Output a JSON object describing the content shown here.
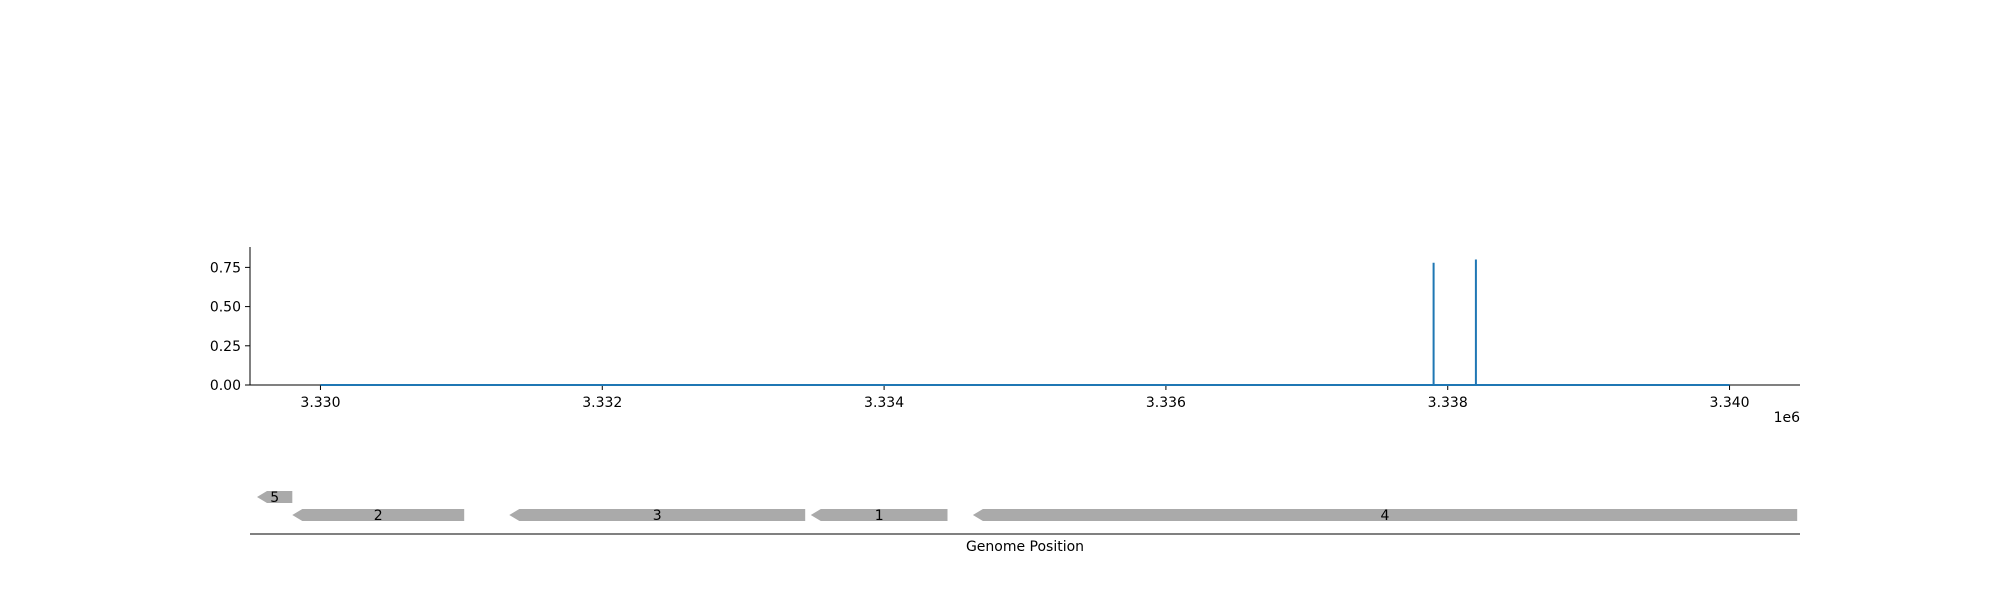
{
  "chart_data": [
    {
      "type": "line",
      "title": "",
      "xlabel": "",
      "ylabel": "",
      "x_offset_label": "1e6",
      "xlim": [
        3.3295,
        3.3405
      ],
      "ylim": [
        0,
        0.88
      ],
      "x_ticks": [
        3.33,
        3.332,
        3.334,
        3.336,
        3.338,
        3.34
      ],
      "x_tick_labels": [
        "3.330",
        "3.332",
        "3.334",
        "3.336",
        "3.338",
        "3.340"
      ],
      "y_ticks": [
        0.0,
        0.25,
        0.5,
        0.75
      ],
      "y_tick_labels": [
        "0.00",
        "0.25",
        "0.50",
        "0.75"
      ],
      "grid": false,
      "color": "#1f77b4",
      "series": [
        {
          "x": [
            3.33,
            3.3379,
            3.3379,
            3.3379,
            3.3382,
            3.3382,
            3.3382,
            3.34
          ],
          "values": [
            0,
            0,
            0.78,
            0,
            0,
            0.8,
            0,
            0
          ]
        }
      ]
    },
    {
      "type": "gene-track",
      "xlabel": "Genome Position",
      "xlim": [
        3.3295,
        3.3405
      ],
      "color": "#aaaaaa",
      "genes": [
        {
          "label": "5",
          "start": 3.32955,
          "end": 3.3298,
          "strand": "-",
          "row": 1
        },
        {
          "label": "2",
          "start": 3.3298,
          "end": 3.33102,
          "strand": "-",
          "row": 0
        },
        {
          "label": "3",
          "start": 3.33134,
          "end": 3.33344,
          "strand": "-",
          "row": 0
        },
        {
          "label": "1",
          "start": 3.33348,
          "end": 3.33445,
          "strand": "-",
          "row": 0
        },
        {
          "label": "4",
          "start": 3.33463,
          "end": 3.34048,
          "strand": "-",
          "row": 0
        }
      ]
    }
  ]
}
